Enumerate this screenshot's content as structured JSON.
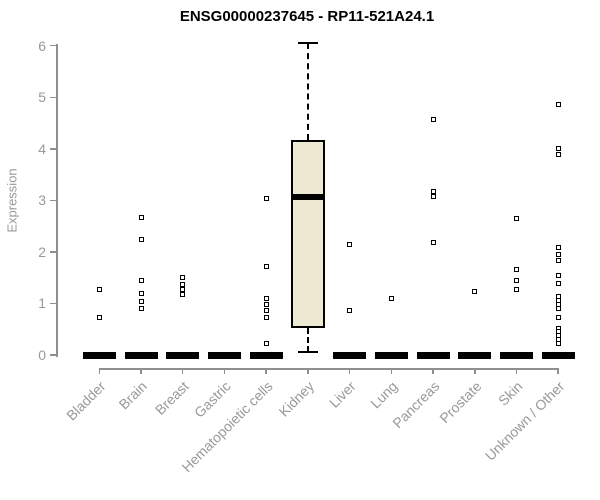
{
  "title": "ENSG00000237645 - RP11-521A24.1",
  "chart_data": {
    "type": "box",
    "title": "ENSG00000237645 - RP11-521A24.1",
    "ylabel": "Expression",
    "xlabel": "",
    "ylim": [
      0,
      6
    ],
    "yticks": [
      0,
      1,
      2,
      3,
      4,
      5,
      6
    ],
    "grid": false,
    "legend": false,
    "categories": [
      "Bladder",
      "Brain",
      "Breast",
      "Gastric",
      "Hematopoietic cells",
      "Kidney",
      "Liver",
      "Lung",
      "Pancreas",
      "Prostate",
      "Skin",
      "Unknown / Other"
    ],
    "boxes": [
      {
        "category": "Bladder",
        "q1": 0,
        "median": 0,
        "q3": 0,
        "whisker_low": 0,
        "whisker_high": 0,
        "collapsed": true,
        "outliers": [
          1.27,
          0.72
        ]
      },
      {
        "category": "Brain",
        "q1": 0,
        "median": 0,
        "q3": 0,
        "whisker_low": 0,
        "whisker_high": 0,
        "collapsed": true,
        "outliers": [
          2.66,
          2.25,
          1.44,
          1.2,
          1.04,
          0.91
        ]
      },
      {
        "category": "Breast",
        "q1": 0,
        "median": 0,
        "q3": 0,
        "whisker_low": 0,
        "whisker_high": 0,
        "collapsed": true,
        "outliers": [
          1.5,
          1.37,
          1.27,
          1.18
        ]
      },
      {
        "category": "Gastric",
        "q1": 0,
        "median": 0,
        "q3": 0,
        "whisker_low": 0,
        "whisker_high": 0,
        "collapsed": true,
        "outliers": []
      },
      {
        "category": "Hematopoietic cells",
        "q1": 0,
        "median": 0,
        "q3": 0,
        "whisker_low": 0,
        "whisker_high": 0,
        "collapsed": true,
        "outliers": [
          3.03,
          1.71,
          1.1,
          0.97,
          0.87,
          0.72,
          0.23
        ]
      },
      {
        "category": "Kidney",
        "q1": 0.52,
        "median": 3.06,
        "q3": 4.17,
        "whisker_low": 0.06,
        "whisker_high": 6.05,
        "collapsed": false,
        "outliers": []
      },
      {
        "category": "Liver",
        "q1": 0,
        "median": 0,
        "q3": 0,
        "whisker_low": 0,
        "whisker_high": 0,
        "collapsed": true,
        "outliers": [
          2.15,
          0.87
        ]
      },
      {
        "category": "Lung",
        "q1": 0,
        "median": 0,
        "q3": 0,
        "whisker_low": 0,
        "whisker_high": 0,
        "collapsed": true,
        "outliers": [
          1.09
        ]
      },
      {
        "category": "Pancreas",
        "q1": 0,
        "median": 0,
        "q3": 0,
        "whisker_low": 0,
        "whisker_high": 0,
        "collapsed": true,
        "outliers": [
          4.56,
          3.18,
          3.07,
          2.18
        ]
      },
      {
        "category": "Prostate",
        "q1": 0,
        "median": 0,
        "q3": 0,
        "whisker_low": 0,
        "whisker_high": 0,
        "collapsed": true,
        "outliers": [
          1.24
        ]
      },
      {
        "category": "Skin",
        "q1": 0,
        "median": 0,
        "q3": 0,
        "whisker_low": 0,
        "whisker_high": 0,
        "collapsed": true,
        "outliers": [
          2.65,
          1.65,
          1.44,
          1.27
        ]
      },
      {
        "category": "Unknown / Other",
        "q1": 0,
        "median": 0,
        "q3": 0,
        "whisker_low": 0,
        "whisker_high": 0,
        "collapsed": true,
        "outliers": [
          4.85,
          4.01,
          3.88,
          2.09,
          1.94,
          1.84,
          1.55,
          1.39,
          1.13,
          1.06,
          0.98,
          0.91,
          0.73,
          0.52,
          0.45,
          0.38,
          0.3,
          0.23
        ]
      }
    ],
    "colors": {
      "box_fill": "#ede8d1",
      "box_border": "#000000",
      "median": "#000000",
      "axis": "#8f8f8f",
      "tick_label": "#999999",
      "title": "#000000",
      "outlier_border": "#000000",
      "outlier_fill": "#ffffff"
    },
    "layout": {
      "x_label_rotation_deg": 45,
      "legend_position": "none"
    }
  }
}
